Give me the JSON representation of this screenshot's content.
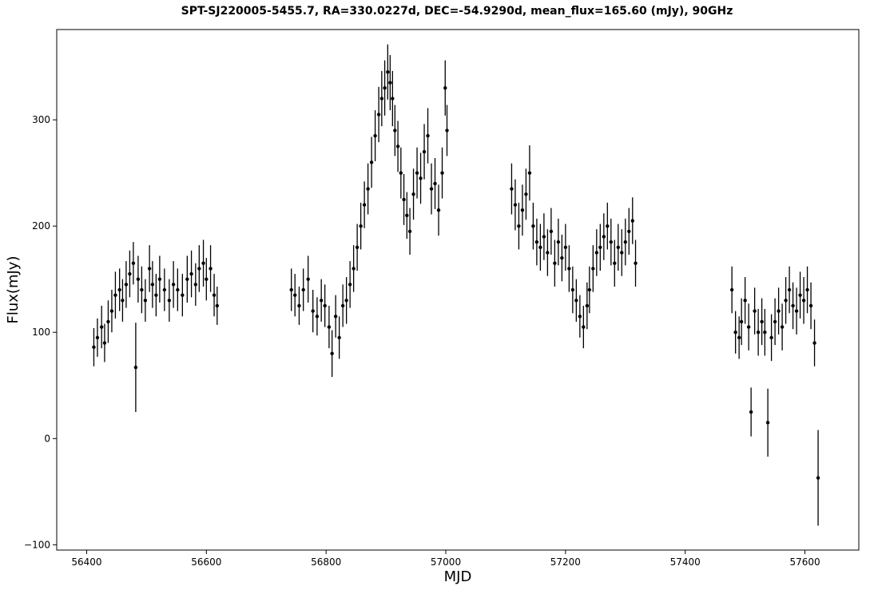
{
  "chart_data": {
    "type": "scatter",
    "title": "SPT-SJ220005-5455.7, RA=330.0227d, DEC=-54.9290d, mean_flux=165.60 (mJy), 90GHz",
    "xlabel": "MJD",
    "ylabel": "Flux(mJy)",
    "xlim": [
      56350,
      57690
    ],
    "ylim": [
      -105,
      385
    ],
    "xticks": [
      56400,
      56600,
      56800,
      57000,
      57200,
      57400,
      57600
    ],
    "yticks": [
      -100,
      0,
      100,
      200,
      300
    ],
    "grid": false,
    "legend": "none",
    "marker_color": "#000000",
    "errorbars": true,
    "series": [
      {
        "x": [
          56412,
          56418,
          56425,
          56430,
          56436,
          56442,
          56448,
          56455,
          56460,
          56466,
          56472,
          56478,
          56482,
          56486,
          56492,
          56498,
          56505,
          56510,
          56516,
          56522,
          56530,
          56538,
          56545,
          56552,
          56560,
          56568,
          56575,
          56582,
          56588,
          56595,
          56600,
          56607,
          56613,
          56618,
          56742,
          56748,
          56755,
          56762,
          56770,
          56778,
          56785,
          56792,
          56798,
          56805,
          56810,
          56816,
          56822,
          56828,
          56834,
          56840,
          56846,
          56852,
          56858,
          56864,
          56870,
          56876,
          56882,
          56888,
          56893,
          56898,
          56903,
          56907,
          56911,
          56915,
          56920,
          56925,
          56930,
          56935,
          56940,
          56946,
          56952,
          56958,
          56964,
          56970,
          56976,
          56982,
          56988,
          56994,
          56999,
          57002,
          57110,
          57116,
          57122,
          57128,
          57134,
          57140,
          57146,
          57152,
          57158,
          57164,
          57170,
          57176,
          57182,
          57188,
          57194,
          57200,
          57206,
          57212,
          57218,
          57224,
          57230,
          57236,
          57240,
          57246,
          57252,
          57258,
          57264,
          57270,
          57276,
          57282,
          57288,
          57294,
          57300,
          57306,
          57312,
          57317,
          57478,
          57484,
          57490,
          57494,
          57500,
          57506,
          57510,
          57516,
          57522,
          57528,
          57533,
          57538,
          57544,
          57550,
          57556,
          57562,
          57568,
          57574,
          57580,
          57586,
          57592,
          57598,
          57604,
          57610,
          57616,
          57622
        ],
        "y": [
          86,
          95,
          105,
          90,
          110,
          120,
          135,
          140,
          130,
          145,
          155,
          165,
          67,
          150,
          140,
          130,
          160,
          145,
          135,
          150,
          140,
          130,
          145,
          140,
          135,
          150,
          155,
          145,
          160,
          165,
          150,
          160,
          135,
          125,
          140,
          135,
          125,
          140,
          150,
          120,
          115,
          130,
          125,
          105,
          80,
          115,
          95,
          125,
          130,
          145,
          160,
          180,
          200,
          220,
          235,
          260,
          285,
          305,
          320,
          330,
          345,
          335,
          320,
          290,
          275,
          250,
          225,
          210,
          195,
          230,
          250,
          245,
          270,
          285,
          235,
          240,
          215,
          250,
          330,
          290,
          235,
          220,
          200,
          215,
          230,
          250,
          200,
          185,
          180,
          190,
          175,
          195,
          165,
          185,
          170,
          180,
          160,
          140,
          130,
          115,
          105,
          125,
          140,
          160,
          175,
          180,
          190,
          200,
          185,
          165,
          180,
          175,
          185,
          195,
          205,
          165,
          140,
          100,
          95,
          110,
          130,
          105,
          25,
          120,
          100,
          110,
          100,
          15,
          95,
          110,
          120,
          105,
          130,
          140,
          125,
          120,
          135,
          130,
          140,
          125,
          90,
          -37
        ],
        "yerr": [
          18,
          18,
          20,
          18,
          20,
          20,
          22,
          20,
          20,
          22,
          22,
          20,
          42,
          22,
          22,
          20,
          22,
          22,
          20,
          22,
          20,
          20,
          22,
          20,
          20,
          22,
          22,
          20,
          22,
          22,
          20,
          22,
          20,
          18,
          20,
          20,
          18,
          20,
          22,
          20,
          18,
          20,
          20,
          20,
          22,
          20,
          20,
          20,
          22,
          22,
          22,
          22,
          22,
          22,
          24,
          24,
          24,
          26,
          26,
          26,
          26,
          26,
          26,
          24,
          24,
          24,
          24,
          22,
          22,
          24,
          24,
          24,
          26,
          26,
          24,
          24,
          24,
          24,
          26,
          24,
          24,
          24,
          22,
          24,
          24,
          26,
          22,
          22,
          22,
          22,
          22,
          22,
          22,
          22,
          22,
          22,
          22,
          22,
          20,
          20,
          20,
          22,
          22,
          22,
          22,
          22,
          22,
          22,
          22,
          22,
          22,
          22,
          22,
          22,
          22,
          22,
          22,
          20,
          20,
          22,
          22,
          22,
          23,
          22,
          22,
          22,
          22,
          32,
          22,
          22,
          22,
          22,
          22,
          22,
          22,
          22,
          22,
          22,
          22,
          22,
          22,
          45
        ]
      }
    ]
  }
}
